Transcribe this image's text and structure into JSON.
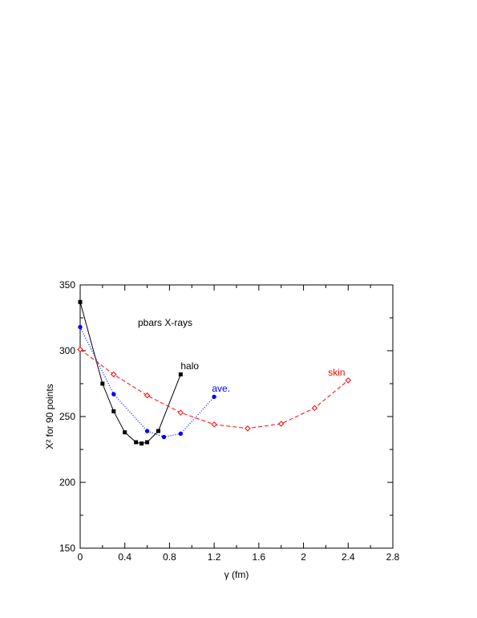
{
  "chart_data": {
    "type": "line",
    "title": "pbars X-rays",
    "xlabel": "γ (fm)",
    "ylabel": "X² for 90 points",
    "xlim": [
      0,
      2.8
    ],
    "ylim": [
      150,
      350
    ],
    "xticks": [
      0,
      0.4,
      0.8,
      1.2,
      1.6,
      2,
      2.4,
      2.8
    ],
    "xtick_labels": [
      "0",
      "0.4",
      "0.8",
      "1.2",
      "1.6",
      "2",
      "2.4",
      "2.8"
    ],
    "yticks": [
      150,
      200,
      250,
      300,
      350
    ],
    "ytick_labels": [
      "150",
      "200",
      "250",
      "300",
      "350"
    ],
    "grid": false,
    "series": [
      {
        "name": "halo",
        "color": "#000000",
        "style": "solid",
        "marker": "filled-square",
        "label_at": [
          0.9,
          286
        ],
        "x": [
          0,
          0.2,
          0.3,
          0.4,
          0.5,
          0.55,
          0.6,
          0.7,
          0.9
        ],
        "y": [
          337,
          275,
          254,
          238,
          230.5,
          229.5,
          230.5,
          239,
          282
        ]
      },
      {
        "name": "ave.",
        "color": "#0000ff",
        "style": "dotted",
        "marker": "filled-circle",
        "label_at": [
          1.18,
          269
        ],
        "x": [
          0,
          0.3,
          0.6,
          0.75,
          0.9,
          1.2
        ],
        "y": [
          318,
          267,
          239,
          234.5,
          237,
          265
        ]
      },
      {
        "name": "skin",
        "color": "#ff0000",
        "style": "dashed",
        "marker": "open-diamond",
        "label_at": [
          2.22,
          281
        ],
        "x": [
          0,
          0.3,
          0.6,
          0.9,
          1.2,
          1.5,
          1.8,
          2.1,
          2.4
        ],
        "y": [
          301,
          282,
          266,
          253,
          244,
          241,
          244.5,
          256.5,
          277.5
        ]
      }
    ]
  }
}
